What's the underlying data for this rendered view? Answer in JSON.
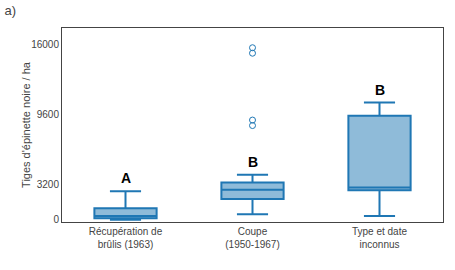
{
  "chart_data": {
    "type": "box",
    "title": "a)",
    "ylabel": "Tiges d'épinette noire / ha",
    "categories": [
      "Récupération de\nbrûlis (1963)",
      "Coupe\n(1950-1967)",
      "Type et date\ninconnus"
    ],
    "boxes": [
      {
        "q1": 150,
        "median": 350,
        "q3": 1050,
        "whisker_low": 0,
        "whisker_high": 2600,
        "outliers": [],
        "label": "A"
      },
      {
        "q1": 1900,
        "median": 2750,
        "q3": 3400,
        "whisker_low": 500,
        "whisker_high": 4100,
        "outliers": [
          8600,
          9100,
          15200,
          15700
        ],
        "label": "B"
      },
      {
        "q1": 2700,
        "median": 2950,
        "q3": 9500,
        "whisker_low": 350,
        "whisker_high": 10700,
        "outliers": [],
        "label": "B"
      }
    ],
    "ylim": [
      -200,
      17500
    ],
    "yticks": [
      0,
      3200,
      9600,
      16000
    ],
    "grid": false
  }
}
